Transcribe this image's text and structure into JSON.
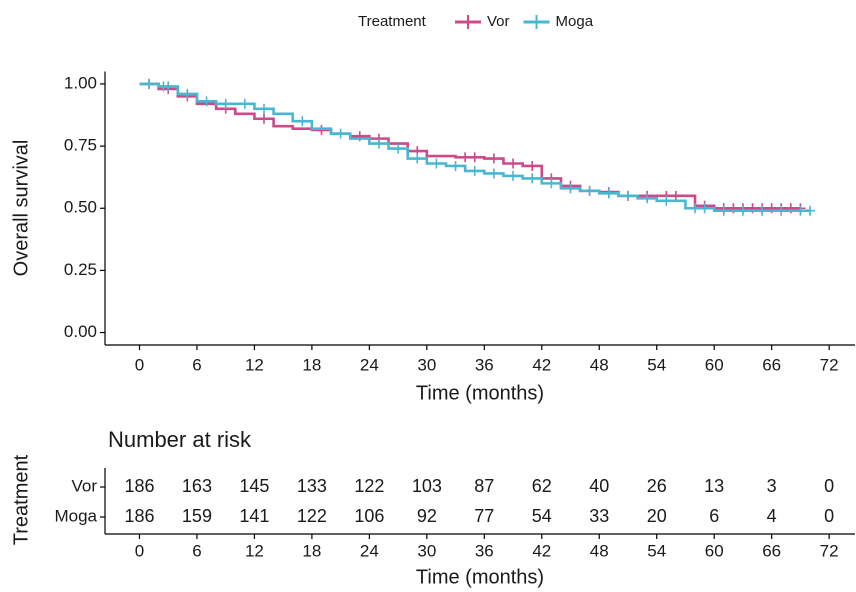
{
  "chart_data": [
    {
      "type": "step",
      "legend_title": "Treatment",
      "legend_position": "top",
      "xlabel": "Time (months)",
      "ylabel": "Overall survival",
      "xlim": [
        -3.6,
        74.7
      ],
      "ylim": [
        -0.05,
        1.05
      ],
      "xticks": [
        0,
        6,
        12,
        18,
        24,
        30,
        36,
        42,
        48,
        54,
        60,
        66,
        72
      ],
      "yticks": [
        {
          "value": 0,
          "label": "0.00"
        },
        {
          "value": 0.25,
          "label": "0.25"
        },
        {
          "value": 0.5,
          "label": "0.50"
        },
        {
          "value": 0.75,
          "label": "0.75"
        },
        {
          "value": 1,
          "label": "1.00"
        }
      ],
      "series": [
        {
          "name": "Vor",
          "color": "#cc4a8a",
          "x": [
            0,
            2,
            4,
            6,
            8,
            10,
            12,
            14,
            16,
            18,
            20,
            22,
            24,
            26,
            28,
            30,
            33,
            36,
            38,
            40,
            42,
            44,
            46,
            48,
            50,
            57,
            58,
            60,
            69
          ],
          "values": [
            1,
            0.98,
            0.95,
            0.92,
            0.9,
            0.88,
            0.86,
            0.83,
            0.82,
            0.815,
            0.8,
            0.79,
            0.78,
            0.76,
            0.73,
            0.71,
            0.705,
            0.7,
            0.68,
            0.67,
            0.62,
            0.59,
            0.57,
            0.565,
            0.55,
            0.55,
            0.51,
            0.5,
            0.5
          ],
          "censor_x": [
            1,
            3,
            5,
            9,
            13,
            19,
            23,
            25,
            29,
            34,
            35,
            37,
            39,
            41,
            43,
            45,
            47,
            49,
            51,
            53,
            55,
            56,
            59,
            61,
            62,
            63,
            64,
            65,
            66,
            67,
            68,
            69
          ]
        },
        {
          "name": "Moga",
          "color": "#4ab7d0",
          "x": [
            0,
            2,
            4,
            6,
            8,
            10,
            12,
            14,
            16,
            18,
            20,
            22,
            24,
            26,
            28,
            30,
            32,
            34,
            36,
            38,
            40,
            42,
            44,
            46,
            48,
            50,
            52,
            54,
            57,
            60,
            70
          ],
          "values": [
            1,
            0.99,
            0.96,
            0.93,
            0.92,
            0.92,
            0.9,
            0.88,
            0.85,
            0.82,
            0.8,
            0.78,
            0.76,
            0.74,
            0.7,
            0.68,
            0.67,
            0.65,
            0.64,
            0.63,
            0.62,
            0.6,
            0.58,
            0.57,
            0.56,
            0.55,
            0.54,
            0.53,
            0.5,
            0.49,
            0.49
          ],
          "censor_x": [
            1,
            2.5,
            3,
            5,
            7,
            9,
            11,
            13,
            17,
            21,
            25,
            27,
            29,
            31,
            33,
            35,
            37,
            39,
            41,
            43,
            45,
            47,
            49,
            51,
            53,
            55,
            58,
            59,
            61,
            63,
            65,
            67,
            69,
            70
          ]
        }
      ]
    },
    {
      "type": "risk_table",
      "title": "Number at risk",
      "xlabel": "Time (months)",
      "ylabel": "Treatment",
      "xlim": [
        -3.6,
        74.7
      ],
      "xticks": [
        0,
        6,
        12,
        18,
        24,
        30,
        36,
        42,
        48,
        54,
        60,
        66,
        72
      ],
      "x": [
        0,
        6,
        12,
        18,
        24,
        30,
        36,
        42,
        48,
        54,
        60,
        66,
        72
      ],
      "series": [
        {
          "name": "Vor",
          "values": [
            186,
            163,
            145,
            133,
            122,
            103,
            87,
            62,
            40,
            26,
            13,
            3,
            0
          ]
        },
        {
          "name": "Moga",
          "values": [
            186,
            159,
            141,
            122,
            106,
            92,
            77,
            54,
            33,
            20,
            6,
            4,
            0
          ]
        }
      ]
    }
  ]
}
